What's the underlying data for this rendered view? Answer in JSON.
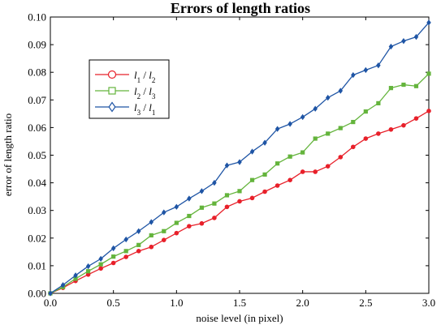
{
  "chart_data": {
    "type": "line",
    "title": "Errors of length ratios",
    "xlabel": "noise level (in pixel)",
    "ylabel": "error of length ratio",
    "xlim": [
      0,
      3.0
    ],
    "ylim": [
      0,
      0.1
    ],
    "xticks": [
      0,
      0.5,
      1.0,
      1.5,
      2.0,
      2.5,
      3.0
    ],
    "xtick_labels": [
      "0.0",
      "0.5",
      "1.0",
      "1.5",
      "2.0",
      "2.5",
      "3.0"
    ],
    "yticks": [
      0,
      0.01,
      0.02,
      0.03,
      0.04,
      0.05,
      0.06,
      0.07,
      0.08,
      0.09,
      0.1
    ],
    "ytick_labels": [
      "0.00",
      "0.01",
      "0.02",
      "0.03",
      "0.04",
      "0.05",
      "0.06",
      "0.07",
      "0.08",
      "0.09",
      "0.10"
    ],
    "grid": false,
    "legend_position": "upper-left",
    "x": [
      0,
      0.1,
      0.2,
      0.3,
      0.4,
      0.5,
      0.6,
      0.7,
      0.8,
      0.9,
      1.0,
      1.1,
      1.2,
      1.3,
      1.4,
      1.5,
      1.6,
      1.7,
      1.8,
      1.9,
      2.0,
      2.1,
      2.2,
      2.3,
      2.4,
      2.5,
      2.6,
      2.7,
      2.8,
      2.9,
      3.0
    ],
    "series": [
      {
        "name": "l1 / l2",
        "legend_main": [
          "l",
          "l"
        ],
        "legend_sub": [
          "1",
          "2"
        ],
        "color": "#e8202a",
        "marker": "circle",
        "values": [
          0.0,
          0.002,
          0.0045,
          0.0068,
          0.009,
          0.011,
          0.0132,
          0.0153,
          0.0168,
          0.0193,
          0.0218,
          0.0243,
          0.0253,
          0.0273,
          0.0313,
          0.0333,
          0.0345,
          0.0368,
          0.039,
          0.041,
          0.044,
          0.044,
          0.046,
          0.0493,
          0.053,
          0.056,
          0.0578,
          0.0593,
          0.0608,
          0.0633,
          0.066
        ]
      },
      {
        "name": "l2 / l3",
        "legend_main": [
          "l",
          "l"
        ],
        "legend_sub": [
          "2",
          "3"
        ],
        "color": "#64b43c",
        "marker": "square",
        "values": [
          0.0,
          0.0023,
          0.0053,
          0.008,
          0.0105,
          0.0133,
          0.0153,
          0.0175,
          0.021,
          0.0225,
          0.0255,
          0.028,
          0.031,
          0.0325,
          0.0355,
          0.037,
          0.041,
          0.043,
          0.047,
          0.0495,
          0.051,
          0.056,
          0.0578,
          0.0598,
          0.062,
          0.0658,
          0.0688,
          0.0743,
          0.0755,
          0.075,
          0.0795
        ]
      },
      {
        "name": "l3 / l1",
        "legend_main": [
          "l",
          "l"
        ],
        "legend_sub": [
          "3",
          "1"
        ],
        "color": "#1f55a5",
        "marker": "diamond",
        "values": [
          0.0,
          0.003,
          0.0065,
          0.0098,
          0.0125,
          0.0163,
          0.0195,
          0.0225,
          0.0258,
          0.0293,
          0.0313,
          0.0343,
          0.037,
          0.04,
          0.0463,
          0.0475,
          0.0513,
          0.0545,
          0.0595,
          0.0613,
          0.0638,
          0.0668,
          0.0708,
          0.0733,
          0.079,
          0.0808,
          0.0825,
          0.0893,
          0.0913,
          0.0928,
          0.098
        ]
      }
    ]
  }
}
